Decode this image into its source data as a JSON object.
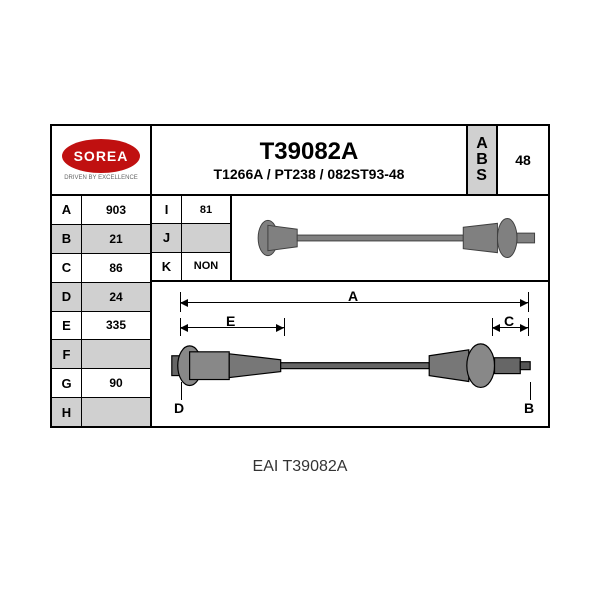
{
  "logo": {
    "text": "SOREA",
    "subtext": "DRIVEN BY EXCELLENCE",
    "bg_color": "#c01010"
  },
  "title": {
    "main": "T39082A",
    "sub": "T1266A / PT238 / 082ST93-48"
  },
  "abs": {
    "label_letters": [
      "A",
      "B",
      "S"
    ],
    "value": "48",
    "bg_color": "#d0d0d0"
  },
  "left_specs": [
    {
      "label": "A",
      "value": "903",
      "shade": false
    },
    {
      "label": "B",
      "value": "21",
      "shade": true
    },
    {
      "label": "C",
      "value": "86",
      "shade": false
    },
    {
      "label": "D",
      "value": "24",
      "shade": true
    },
    {
      "label": "E",
      "value": "335",
      "shade": false
    },
    {
      "label": "F",
      "value": "",
      "shade": true
    },
    {
      "label": "G",
      "value": "90",
      "shade": false
    },
    {
      "label": "H",
      "value": "",
      "shade": true
    }
  ],
  "mini_specs": [
    {
      "label": "I",
      "value": "81",
      "shade": false
    },
    {
      "label": "J",
      "value": "",
      "shade": true
    },
    {
      "label": "K",
      "value": "NON",
      "shade": false
    }
  ],
  "diagram": {
    "dims": {
      "A": "A",
      "E": "E",
      "C": "C",
      "B": "B",
      "D": "D"
    },
    "axle_color": "#707070",
    "joint_fill": "#808080",
    "line_color": "#000000"
  },
  "caption": "EAI T39082A",
  "colors": {
    "border": "#000000",
    "shade": "#d0d0d0",
    "bg": "#ffffff"
  }
}
